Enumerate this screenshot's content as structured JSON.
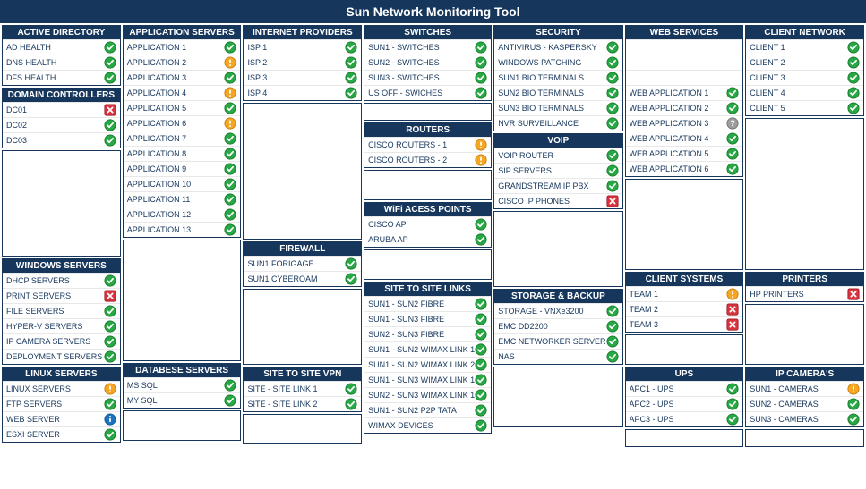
{
  "title": "Sun Network Monitoring Tool",
  "colors": {
    "header_bg": "#16365c",
    "header_fg": "#ffffff",
    "ok": "#28a745",
    "warn": "#f5a623",
    "err": "#d9333f",
    "info": "#1e73be",
    "unknown": "#9e9e9e"
  },
  "columns": [
    [
      {
        "title": "ACTIVE DIRECTORY",
        "items": [
          {
            "label": "AD HEALTH",
            "status": "ok"
          },
          {
            "label": "DNS HEALTH",
            "status": "ok"
          },
          {
            "label": "DFS HEALTH",
            "status": "ok"
          }
        ]
      },
      {
        "title": "DOMAIN CONTROLLERS",
        "items": [
          {
            "label": "DC01",
            "status": "err"
          },
          {
            "label": "DC02",
            "status": "ok"
          },
          {
            "label": "DC03",
            "status": "ok"
          }
        ]
      },
      {
        "spacer": true,
        "rows": 7
      },
      {
        "title": "WINDOWS SERVERS",
        "items": [
          {
            "label": "DHCP SERVERS",
            "status": "ok"
          },
          {
            "label": "PRINT SERVERS",
            "status": "err"
          },
          {
            "label": "FILE SERVERS",
            "status": "ok"
          },
          {
            "label": "HYPER-V SERVERS",
            "status": "ok"
          },
          {
            "label": "IP CAMERA SERVERS",
            "status": "ok"
          },
          {
            "label": "DEPLOYMENT SERVERS",
            "status": "ok"
          }
        ]
      },
      {
        "title": "LINUX SERVERS",
        "items": [
          {
            "label": "LINUX SERVERS",
            "status": "warn"
          },
          {
            "label": "FTP SERVERS",
            "status": "ok"
          },
          {
            "label": "WEB SERVER",
            "status": "info"
          },
          {
            "label": "ESXI SERVER",
            "status": "ok"
          }
        ]
      }
    ],
    [
      {
        "title": "APPLICATION SERVERS",
        "items": [
          {
            "label": "APPLICATION 1",
            "status": "ok"
          },
          {
            "label": "APPLICATION 2",
            "status": "warn"
          },
          {
            "label": "APPLICATION 3",
            "status": "ok"
          },
          {
            "label": "APPLICATION 4",
            "status": "warn"
          },
          {
            "label": "APPLICATION 5",
            "status": "ok"
          },
          {
            "label": "APPLICATION 6",
            "status": "warn"
          },
          {
            "label": "APPLICATION 7",
            "status": "ok"
          },
          {
            "label": "APPLICATION 8",
            "status": "ok"
          },
          {
            "label": "APPLICATION 9",
            "status": "ok"
          },
          {
            "label": "APPLICATION 10",
            "status": "ok"
          },
          {
            "label": "APPLICATION 11",
            "status": "ok"
          },
          {
            "label": "APPLICATION 12",
            "status": "ok"
          },
          {
            "label": "APPLICATION 13",
            "status": "ok"
          }
        ]
      },
      {
        "spacer": true,
        "rows": 8
      },
      {
        "title": "DATABESE SERVERS",
        "items": [
          {
            "label": "MS SQL",
            "status": "ok"
          },
          {
            "label": "MY SQL",
            "status": "ok"
          }
        ]
      },
      {
        "spacer": true,
        "rows": 2
      }
    ],
    [
      {
        "title": "INTERNET PROVIDERS",
        "items": [
          {
            "label": "ISP 1",
            "status": "ok"
          },
          {
            "label": "ISP 2",
            "status": "ok"
          },
          {
            "label": "ISP 3",
            "status": "ok"
          },
          {
            "label": "ISP 4",
            "status": "ok"
          }
        ]
      },
      {
        "spacer": true,
        "rows": 9
      },
      {
        "title": "FIREWALL",
        "items": [
          {
            "label": "SUN1 FORIGAGE",
            "status": "ok"
          },
          {
            "label": "SUN1 CYBEROAM",
            "status": "ok"
          }
        ]
      },
      {
        "spacer": true,
        "rows": 5
      },
      {
        "title": "SITE TO SITE VPN",
        "items": [
          {
            "label": "SITE - SITE LINK 1",
            "status": "ok"
          },
          {
            "label": "SITE - SITE LINK 2",
            "status": "ok"
          }
        ]
      },
      {
        "spacer": true,
        "rows": 2
      }
    ],
    [
      {
        "title": "SWITCHES",
        "items": [
          {
            "label": "SUN1 - SWITCHES",
            "status": "ok"
          },
          {
            "label": "SUN2 - SWITCHES",
            "status": "ok"
          },
          {
            "label": "SUN3 - SWITCHES",
            "status": "ok"
          },
          {
            "label": "US OFF - SWICHES",
            "status": "ok"
          }
        ]
      },
      {
        "spacer": true,
        "rows": 1
      },
      {
        "title": "ROUTERS",
        "items": [
          {
            "label": "CISCO ROUTERS - 1",
            "status": "warn"
          },
          {
            "label": "CISCO ROUTERS - 2",
            "status": "warn"
          }
        ]
      },
      {
        "spacer": true,
        "rows": 2
      },
      {
        "title": "WiFi ACESS POINTS",
        "items": [
          {
            "label": "CISCO AP",
            "status": "ok"
          },
          {
            "label": "ARUBA AP",
            "status": "ok"
          }
        ]
      },
      {
        "spacer": true,
        "rows": 2
      },
      {
        "title": "SITE TO SITE LINKS",
        "items": [
          {
            "label": "SUN1 - SUN2 FIBRE",
            "status": "ok"
          },
          {
            "label": "SUN1 - SUN3 FIBRE",
            "status": "ok"
          },
          {
            "label": "SUN2 - SUN3 FIBRE",
            "status": "ok"
          },
          {
            "label": "SUN1 - SUN2 WIMAX LINK 1",
            "status": "ok"
          },
          {
            "label": "SUN1 - SUN2 WIMAX LINK 2",
            "status": "ok"
          },
          {
            "label": "SUN1 - SUN3 WIMAX LINK 1",
            "status": "ok"
          },
          {
            "label": "SUN2 - SUN3 WIMAX LINK 1",
            "status": "ok"
          },
          {
            "label": "SUN1 - SUN2 P2P TATA",
            "status": "ok"
          },
          {
            "label": "WIMAX DEVICES",
            "status": "ok"
          }
        ]
      }
    ],
    [
      {
        "title": "SECURITY",
        "items": [
          {
            "label": "ANTIVIRUS - KASPERSKY",
            "status": "ok"
          },
          {
            "label": "WINDOWS PATCHING",
            "status": "ok"
          },
          {
            "label": "SUN1 BIO TERMINALS",
            "status": "ok"
          },
          {
            "label": "SUN2 BIO TERMINALS",
            "status": "ok"
          },
          {
            "label": "SUN3 BIO TERMINALS",
            "status": "ok"
          },
          {
            "label": "NVR SURVEILLANCE",
            "status": "ok"
          }
        ]
      },
      {
        "title": "VOIP",
        "items": [
          {
            "label": "VOIP ROUTER",
            "status": "ok"
          },
          {
            "label": "SIP SERVERS",
            "status": "ok"
          },
          {
            "label": "GRANDSTREAM IP PBX",
            "status": "ok"
          },
          {
            "label": "CISCO IP PHONES",
            "status": "err"
          }
        ]
      },
      {
        "spacer": true,
        "rows": 5
      },
      {
        "title": "STORAGE & BACKUP",
        "items": [
          {
            "label": "STORAGE - VNXe3200",
            "status": "ok"
          },
          {
            "label": "EMC DD2200",
            "status": "ok"
          },
          {
            "label": "EMC NETWORKER SERVER",
            "status": "ok"
          },
          {
            "label": "NAS",
            "status": "ok"
          }
        ]
      },
      {
        "spacer": true,
        "rows": 4
      }
    ],
    [
      {
        "title": "WEB SERVICES",
        "items": [
          {
            "label": "",
            "status": "none"
          },
          {
            "label": "",
            "status": "none"
          },
          {
            "label": "",
            "status": "none"
          },
          {
            "label": "WEB APPLICATION 1",
            "status": "ok"
          },
          {
            "label": "WEB APPLICATION 2",
            "status": "ok"
          },
          {
            "label": "WEB APPLICATION 3",
            "status": "unknown"
          },
          {
            "label": "WEB APPLICATION 4",
            "status": "ok"
          },
          {
            "label": "WEB APPLICATION 5",
            "status": "ok"
          },
          {
            "label": "WEB APPLICATION 6",
            "status": "ok"
          }
        ]
      },
      {
        "spacer": true,
        "rows": 6
      },
      {
        "title": "CLIENT SYSTEMS",
        "items": [
          {
            "label": "TEAM 1",
            "status": "warn"
          },
          {
            "label": "TEAM 2",
            "status": "err"
          },
          {
            "label": "TEAM 3",
            "status": "err"
          }
        ]
      },
      {
        "spacer": true,
        "rows": 2
      },
      {
        "title": "UPS",
        "items": [
          {
            "label": "APC1 -  UPS",
            "status": "ok"
          },
          {
            "label": "APC2 - UPS",
            "status": "ok"
          },
          {
            "label": "APC3 - UPS",
            "status": "ok"
          }
        ]
      },
      {
        "spacer": true,
        "rows": 1
      }
    ],
    [
      {
        "title": "CLIENT NETWORK",
        "items": [
          {
            "label": "CLIENT 1",
            "status": "ok"
          },
          {
            "label": "CLIENT 2",
            "status": "ok"
          },
          {
            "label": "CLIENT 3",
            "status": "ok"
          },
          {
            "label": "CLIENT 4",
            "status": "ok"
          },
          {
            "label": "CLIENT 5",
            "status": "ok"
          }
        ]
      },
      {
        "spacer": true,
        "rows": 10
      },
      {
        "title": "PRINTERS",
        "items": [
          {
            "label": "HP PRINTERS",
            "status": "err"
          }
        ]
      },
      {
        "spacer": true,
        "rows": 4
      },
      {
        "title": "IP CAMERA'S",
        "items": [
          {
            "label": "SUN1 - CAMERAS",
            "status": "warn"
          },
          {
            "label": "SUN2 - CAMERAS",
            "status": "ok"
          },
          {
            "label": "SUN3 - CAMERAS",
            "status": "ok"
          }
        ]
      },
      {
        "spacer": true,
        "rows": 1
      }
    ]
  ]
}
